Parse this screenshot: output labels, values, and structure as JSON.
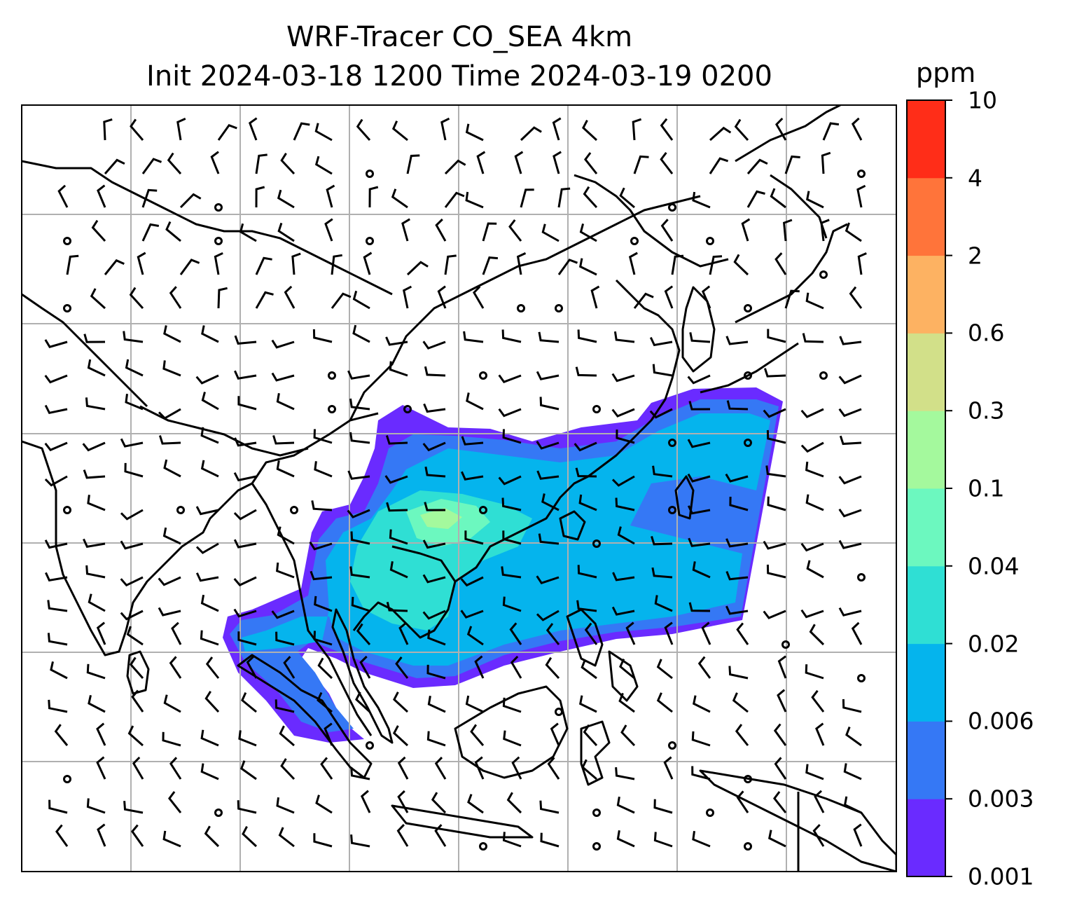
{
  "title": {
    "line1": "WRF-Tracer CO_SEA 4km",
    "line2": "Init 2024-03-18 1200 Time 2024-03-19 0200"
  },
  "colorbar": {
    "unit": "ppm",
    "levels": [
      "0.001",
      "0.003",
      "0.006",
      "0.02",
      "0.04",
      "0.1",
      "0.3",
      "0.6",
      "2",
      "4",
      "10"
    ],
    "colors": [
      "#6a2bff",
      "#3578f5",
      "#05b4ed",
      "#2fdfd4",
      "#6cf8bf",
      "#a4f99d",
      "#d2e089",
      "#fdb262",
      "#ff743a",
      "#ff2d18"
    ]
  },
  "map": {
    "gridlines": true,
    "coastline_color": "#000000",
    "wind_barbs": true
  }
}
